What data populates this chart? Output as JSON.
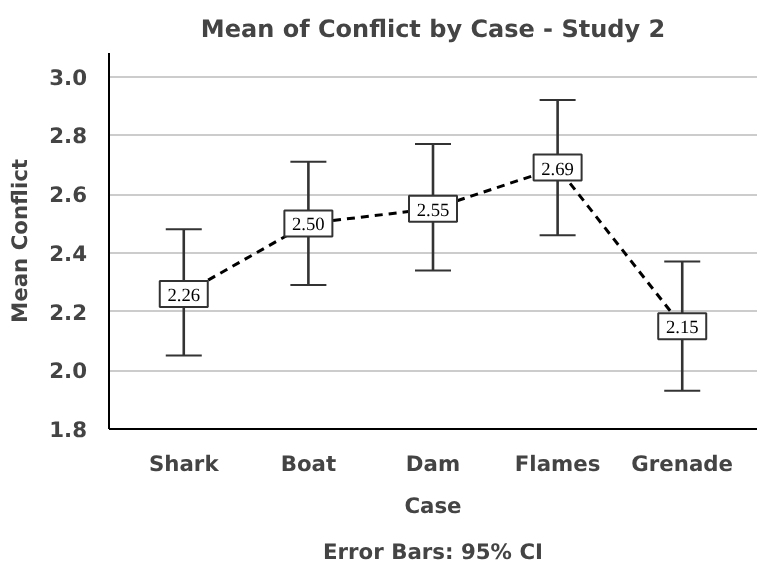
{
  "chart_data": {
    "type": "line",
    "title": "Mean of Conflict by Case - Study 2",
    "xlabel": "Case",
    "ylabel": "Mean Conflict",
    "categories": [
      "Shark",
      "Boat",
      "Dam",
      "Flames",
      "Grenade"
    ],
    "values": [
      2.26,
      2.5,
      2.55,
      2.69,
      2.15
    ],
    "errors": [
      [
        2.05,
        2.48
      ],
      [
        2.29,
        2.71
      ],
      [
        2.34,
        2.77
      ],
      [
        2.46,
        2.92
      ],
      [
        1.93,
        2.37
      ]
    ],
    "value_labels": [
      "2.26",
      "2.50",
      "2.55",
      "2.69",
      "2.15"
    ],
    "color": "#000000",
    "line_style": "dashed",
    "marker": "square",
    "ylim": [
      1.8,
      3.08
    ],
    "yticks": [
      {
        "value": 1.8,
        "label": "1.8"
      },
      {
        "value": 2,
        "label": "2.0"
      },
      {
        "value": 2.2,
        "label": "2.2"
      },
      {
        "value": 2.4,
        "label": "2.4"
      },
      {
        "value": 2.6,
        "label": "2.6"
      },
      {
        "value": 2.8,
        "label": "2.8"
      },
      {
        "value": 3,
        "label": "3.0"
      }
    ],
    "grid": "y",
    "annotations": [
      "Error Bars: 95% CI"
    ]
  }
}
